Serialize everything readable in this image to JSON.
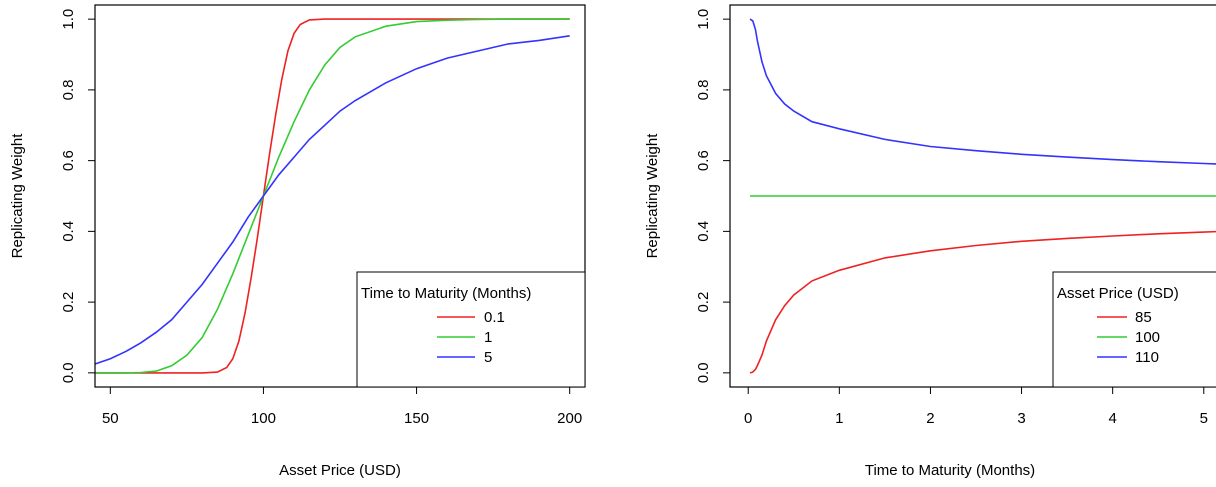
{
  "colors": {
    "red": "#ee2222",
    "green": "#33cc33",
    "blue": "#3333ff"
  },
  "chart_data": [
    {
      "type": "line",
      "title": "",
      "xlabel": "Asset Price (USD)",
      "ylabel": "Replicating Weight",
      "xlim": [
        45,
        205
      ],
      "ylim": [
        -0.04,
        1.04
      ],
      "xticks": [
        50,
        100,
        150,
        200
      ],
      "xtick_labels": [
        "50",
        "100",
        "150",
        "200"
      ],
      "yticks": [
        0.0,
        0.2,
        0.4,
        0.6,
        0.8,
        1.0
      ],
      "ytick_labels": [
        "0.0",
        "0.2",
        "0.4",
        "0.6",
        "0.8",
        "1.0"
      ],
      "grid": false,
      "legend": {
        "title": "Time to Maturity (Months)",
        "position": "bottom-right"
      },
      "series": [
        {
          "name": "0.1",
          "color": "#ee2222",
          "x": [
            45,
            70,
            80,
            85,
            88,
            90,
            92,
            94,
            96,
            98,
            100,
            102,
            104,
            106,
            108,
            110,
            112,
            115,
            120,
            130,
            150,
            200
          ],
          "y": [
            0.0,
            0.0,
            0.0,
            0.002,
            0.015,
            0.04,
            0.09,
            0.17,
            0.27,
            0.38,
            0.5,
            0.62,
            0.73,
            0.83,
            0.91,
            0.96,
            0.985,
            0.998,
            1.0,
            1.0,
            1.0,
            1.0
          ]
        },
        {
          "name": "1",
          "color": "#33cc33",
          "x": [
            45,
            55,
            60,
            65,
            70,
            75,
            80,
            85,
            90,
            95,
            100,
            105,
            110,
            115,
            120,
            125,
            130,
            140,
            150,
            160,
            170,
            180,
            200
          ],
          "y": [
            0.0,
            0.0,
            0.001,
            0.005,
            0.02,
            0.05,
            0.1,
            0.18,
            0.28,
            0.39,
            0.5,
            0.61,
            0.71,
            0.8,
            0.87,
            0.92,
            0.95,
            0.98,
            0.993,
            0.997,
            0.999,
            1.0,
            1.0
          ]
        },
        {
          "name": "5",
          "color": "#3333ff",
          "x": [
            45,
            50,
            55,
            60,
            65,
            70,
            75,
            80,
            85,
            90,
            95,
            100,
            105,
            110,
            115,
            120,
            125,
            130,
            140,
            150,
            160,
            170,
            180,
            190,
            200
          ],
          "y": [
            0.025,
            0.04,
            0.06,
            0.085,
            0.115,
            0.15,
            0.2,
            0.25,
            0.31,
            0.37,
            0.44,
            0.5,
            0.56,
            0.61,
            0.66,
            0.7,
            0.74,
            0.77,
            0.82,
            0.86,
            0.89,
            0.91,
            0.93,
            0.94,
            0.953
          ]
        }
      ]
    },
    {
      "type": "line",
      "title": "",
      "xlabel": "Time to Maturity (Months)",
      "ylabel": "Replicating Weight",
      "xlim": [
        -0.2,
        5.2
      ],
      "ylim": [
        -0.04,
        1.04
      ],
      "xticks": [
        0,
        1,
        2,
        3,
        4,
        5
      ],
      "xtick_labels": [
        "0",
        "1",
        "2",
        "3",
        "4",
        "5"
      ],
      "yticks": [
        0.0,
        0.2,
        0.4,
        0.6,
        0.8,
        1.0
      ],
      "ytick_labels": [
        "0.0",
        "0.2",
        "0.4",
        "0.6",
        "0.8",
        "1.0"
      ],
      "grid": false,
      "legend": {
        "title": "Asset Price (USD)",
        "position": "bottom-right"
      },
      "series": [
        {
          "name": "85",
          "color": "#ee2222",
          "x": [
            0.02,
            0.05,
            0.08,
            0.1,
            0.15,
            0.2,
            0.3,
            0.4,
            0.5,
            0.7,
            1.0,
            1.5,
            2.0,
            2.5,
            3.0,
            3.5,
            4.0,
            4.5,
            5.0,
            5.2
          ],
          "y": [
            0.0,
            0.002,
            0.01,
            0.02,
            0.05,
            0.09,
            0.15,
            0.19,
            0.22,
            0.26,
            0.29,
            0.325,
            0.345,
            0.36,
            0.372,
            0.38,
            0.387,
            0.393,
            0.398,
            0.4
          ]
        },
        {
          "name": "100",
          "color": "#33cc33",
          "x": [
            0.02,
            1,
            2,
            3,
            4,
            5,
            5.2
          ],
          "y": [
            0.5,
            0.5,
            0.5,
            0.5,
            0.5,
            0.5,
            0.5
          ]
        },
        {
          "name": "110",
          "color": "#3333ff",
          "x": [
            0.02,
            0.05,
            0.08,
            0.1,
            0.15,
            0.2,
            0.3,
            0.4,
            0.5,
            0.7,
            1.0,
            1.5,
            2.0,
            2.5,
            3.0,
            3.5,
            4.0,
            4.5,
            5.0,
            5.2
          ],
          "y": [
            1.0,
            0.995,
            0.97,
            0.94,
            0.88,
            0.84,
            0.79,
            0.76,
            0.74,
            0.71,
            0.69,
            0.66,
            0.64,
            0.628,
            0.618,
            0.61,
            0.603,
            0.597,
            0.592,
            0.59
          ]
        }
      ]
    }
  ]
}
